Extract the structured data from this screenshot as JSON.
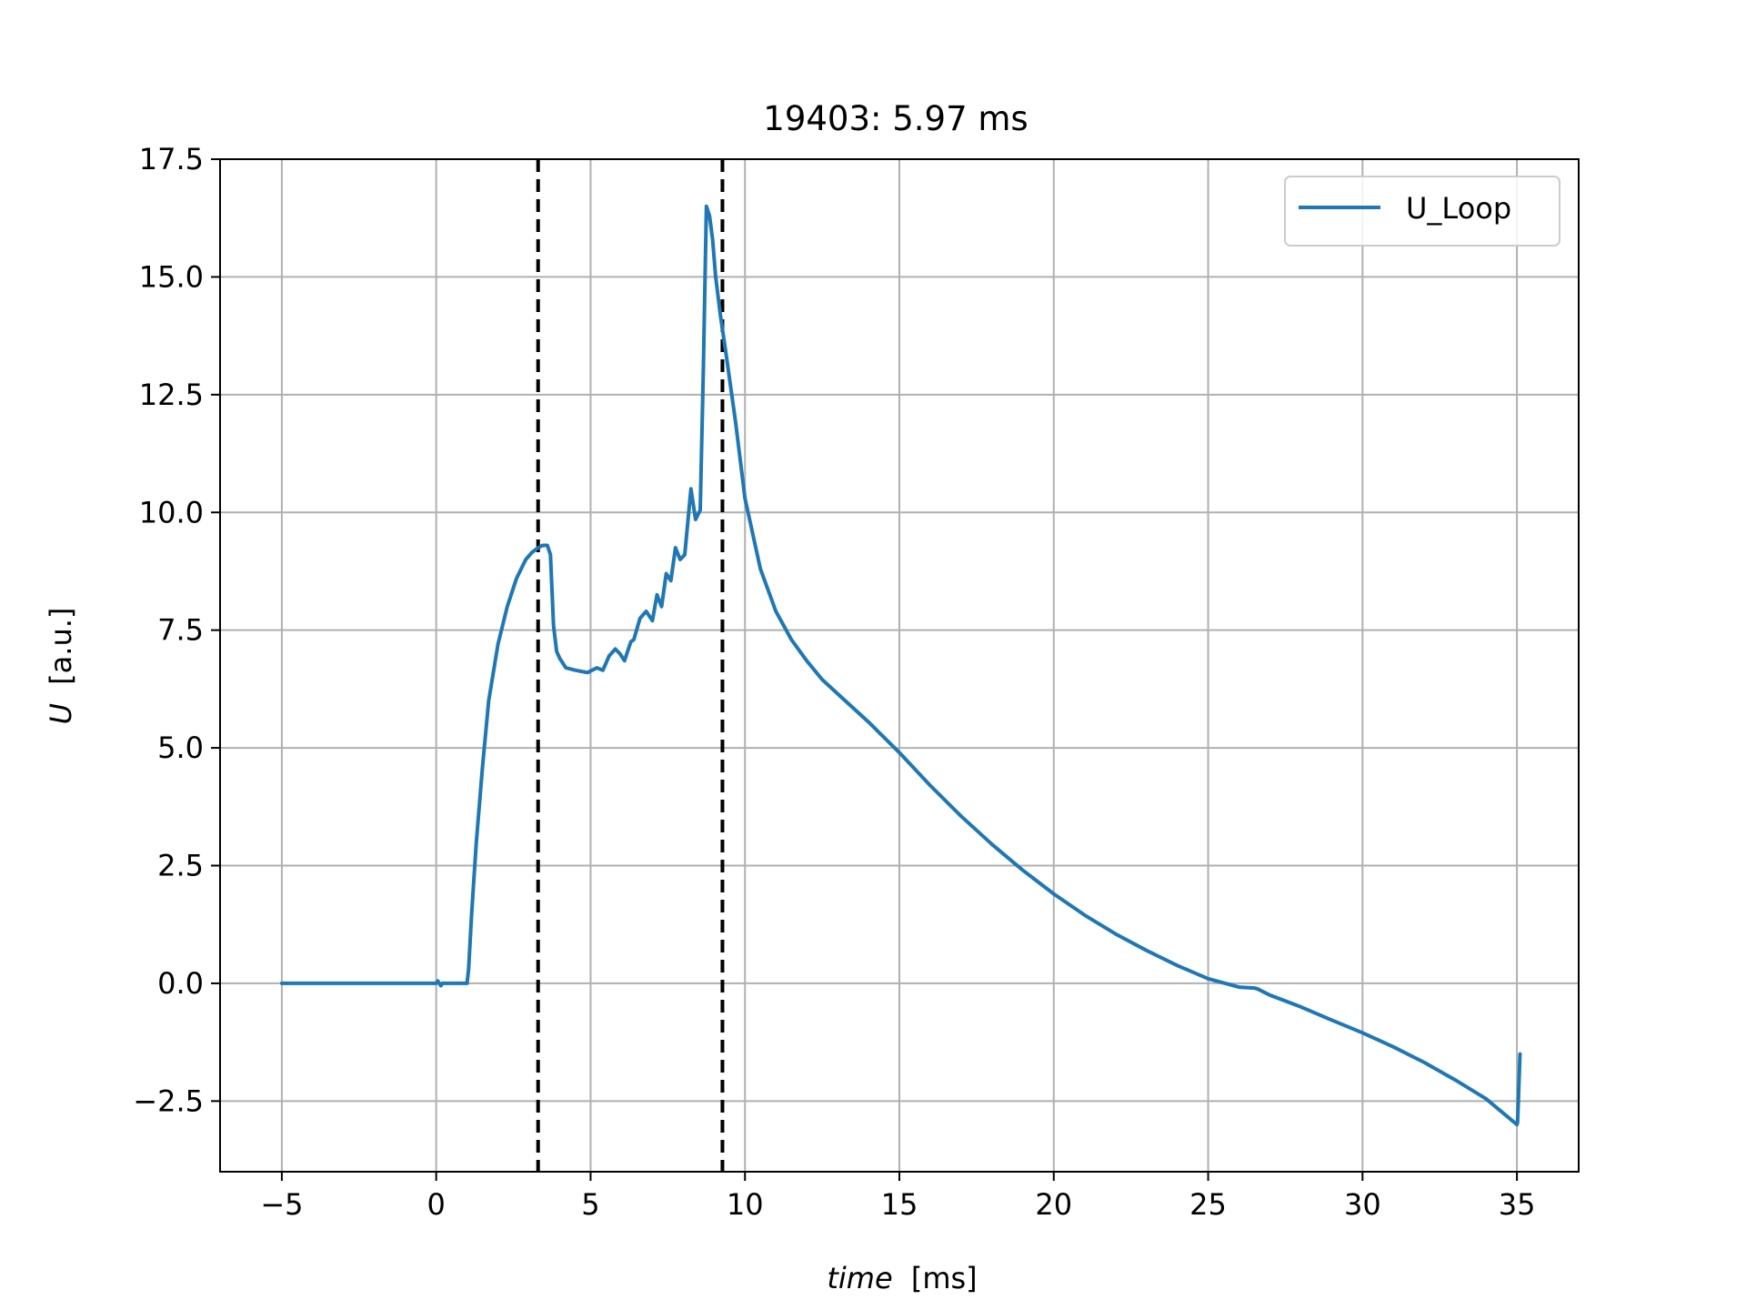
{
  "chart_data": {
    "type": "line",
    "title": "19403: 5.97 ms",
    "xlabel_italic": "time",
    "xlabel_unit": "[ms]",
    "ylabel_italic": "U",
    "ylabel_unit": "[a.u.]",
    "xlim": [
      -7,
      37
    ],
    "ylim": [
      -4.0,
      17.5
    ],
    "xticks": [
      -5,
      0,
      5,
      10,
      15,
      20,
      25,
      30,
      35
    ],
    "xtick_labels": [
      "−5",
      "0",
      "5",
      "10",
      "15",
      "20",
      "25",
      "30",
      "35"
    ],
    "yticks": [
      -2.5,
      0.0,
      2.5,
      5.0,
      7.5,
      10.0,
      12.5,
      15.0,
      17.5
    ],
    "ytick_labels": [
      "−2.5",
      "0.0",
      "2.5",
      "5.0",
      "7.5",
      "10.0",
      "12.5",
      "15.0",
      "17.5"
    ],
    "grid": true,
    "legend_position": "top-right",
    "vlines": [
      3.3,
      9.27
    ],
    "vline_color": "#000000",
    "series": [
      {
        "name": "U_Loop",
        "color": "#1f77b4",
        "x": [
          -5,
          -2,
          0,
          0.05,
          0.1,
          0.15,
          0.2,
          1,
          1.05,
          1.15,
          1.3,
          1.5,
          1.7,
          2.0,
          2.3,
          2.6,
          2.9,
          3.1,
          3.3,
          3.45,
          3.6,
          3.7,
          3.8,
          3.9,
          4.0,
          4.2,
          4.5,
          4.9,
          5.2,
          5.4,
          5.6,
          5.8,
          5.95,
          6.1,
          6.3,
          6.4,
          6.6,
          6.8,
          7.0,
          7.15,
          7.3,
          7.45,
          7.6,
          7.75,
          7.9,
          8.05,
          8.15,
          8.25,
          8.4,
          8.55,
          8.65,
          8.75,
          8.85,
          8.95,
          9.05,
          9.2,
          9.4,
          9.7,
          10.0,
          10.5,
          11.0,
          11.5,
          12.0,
          12.5,
          13.0,
          14.0,
          15.0,
          16.0,
          17.0,
          18.0,
          19.0,
          20.0,
          21.0,
          22.0,
          23.0,
          24.0,
          25.0,
          26.0,
          26.5,
          26.6,
          27.0,
          28.0,
          29.0,
          30.0,
          31.0,
          32.0,
          33.0,
          34.0,
          35.0,
          35.02,
          35.1
        ],
        "values": [
          0.0,
          0.0,
          0.0,
          0.05,
          0.0,
          -0.05,
          0.0,
          0.0,
          0.3,
          1.5,
          3.0,
          4.6,
          6.0,
          7.2,
          8.0,
          8.6,
          9.0,
          9.15,
          9.25,
          9.3,
          9.3,
          9.1,
          7.6,
          7.05,
          6.9,
          6.7,
          6.65,
          6.6,
          6.7,
          6.65,
          6.95,
          7.1,
          7.0,
          6.85,
          7.25,
          7.3,
          7.75,
          7.9,
          7.7,
          8.25,
          8.0,
          8.7,
          8.55,
          9.25,
          9.0,
          9.1,
          9.8,
          10.5,
          9.85,
          10.05,
          13.0,
          16.5,
          16.3,
          15.8,
          15.0,
          14.2,
          13.3,
          11.9,
          10.3,
          8.8,
          7.9,
          7.3,
          6.85,
          6.45,
          6.15,
          5.55,
          4.9,
          4.2,
          3.55,
          2.95,
          2.4,
          1.9,
          1.45,
          1.05,
          0.7,
          0.38,
          0.1,
          -0.08,
          -0.1,
          -0.12,
          -0.25,
          -0.5,
          -0.78,
          -1.05,
          -1.35,
          -1.68,
          -2.05,
          -2.45,
          -3.0,
          -2.95,
          -1.5
        ]
      }
    ]
  }
}
